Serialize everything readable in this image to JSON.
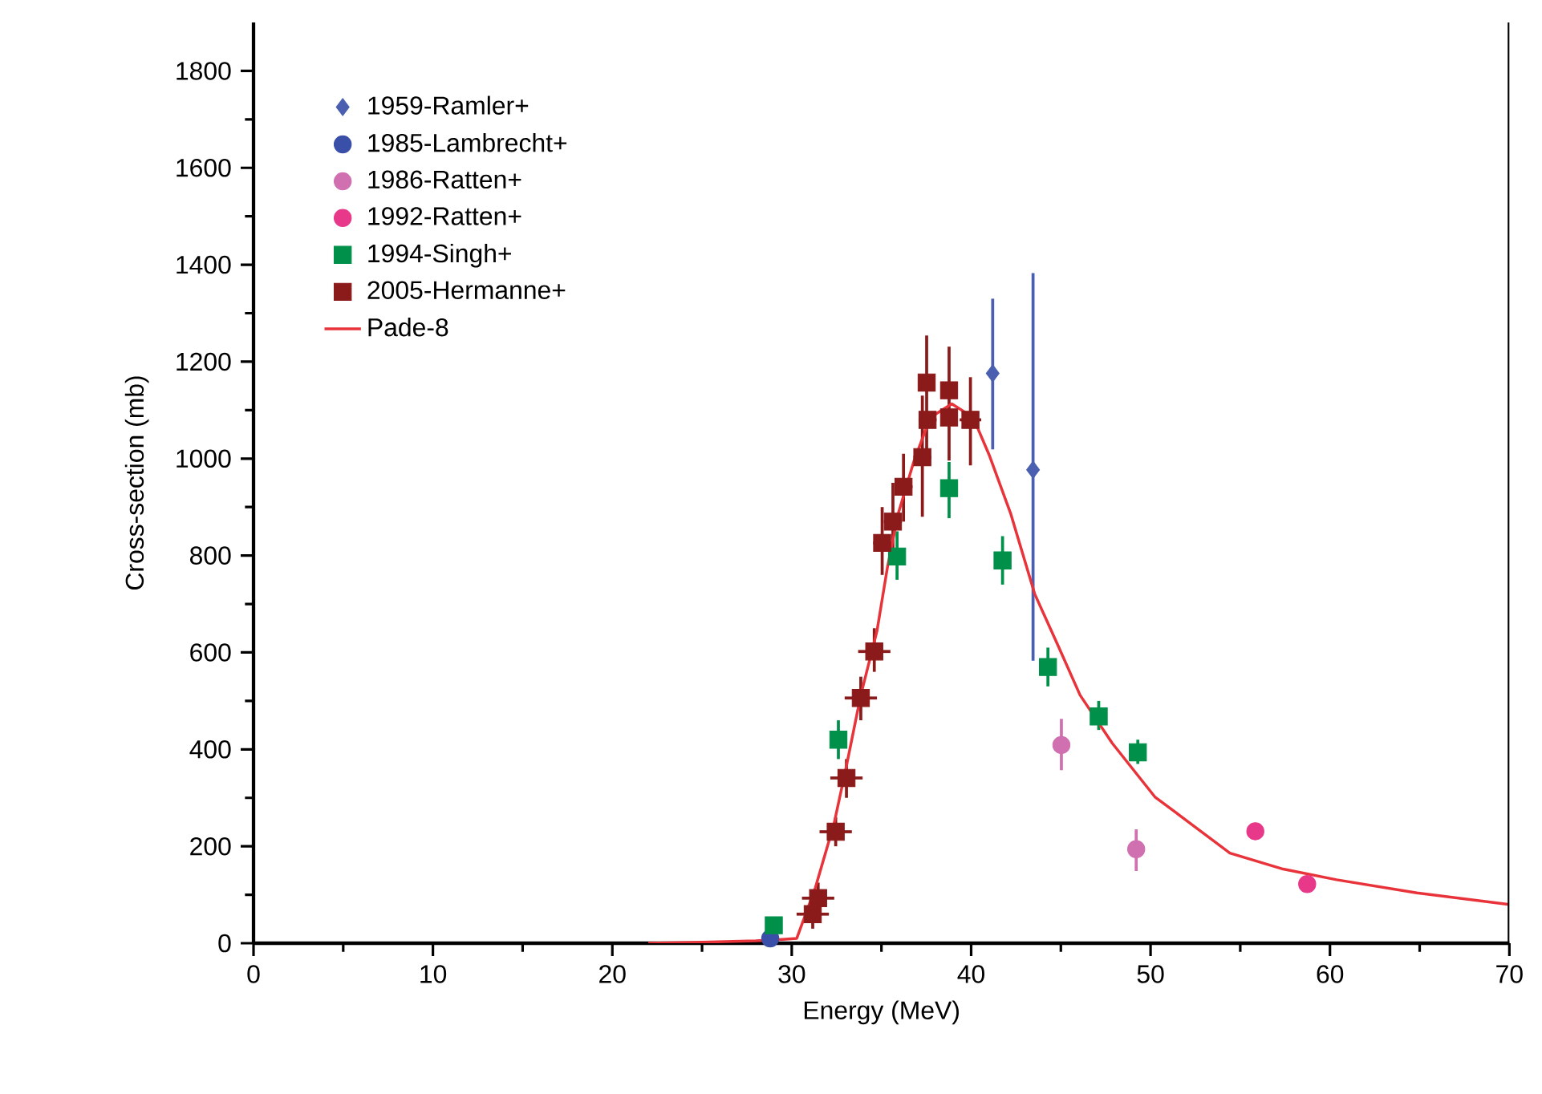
{
  "chart_data": {
    "type": "scatter",
    "xlabel": "Energy (MeV)",
    "ylabel": "Cross-section (mb)",
    "xlim": [
      0,
      70
    ],
    "ylim": [
      0,
      1900
    ],
    "xticks": [
      0,
      10,
      20,
      30,
      40,
      50,
      60,
      70
    ],
    "yticks": [
      0,
      200,
      400,
      600,
      800,
      1000,
      1200,
      1400,
      1600,
      1800
    ],
    "legend": "top left",
    "grid": false,
    "series": [
      {
        "name": "1959-Ramler+",
        "color": "#4a5fb0",
        "marker": "diamond",
        "x": [
          41.2,
          43.45
        ],
        "values": [
          1176,
          977
        ],
        "errors": [
          [
            1019,
            1330
          ],
          [
            583,
            1383
          ]
        ]
      },
      {
        "name": "1985-Lambrecht+",
        "color": "#3a4fa8",
        "marker": "circle",
        "x": [
          28.8
        ],
        "values": [
          10
        ]
      },
      {
        "name": "1986-Ratten+",
        "color": "#d070b0",
        "marker": "circle",
        "x": [
          45.03,
          49.2
        ],
        "values": [
          409,
          194
        ],
        "errors": [
          [
            357,
            463
          ],
          [
            149,
            235
          ]
        ]
      },
      {
        "name": "1992-Ratten+",
        "color": "#e8388a",
        "marker": "circle",
        "x": [
          55.84,
          58.73
        ],
        "values": [
          231,
          122
        ]
      },
      {
        "name": "1994-Singh+",
        "color": "#00904a",
        "marker": "square",
        "x": [
          29.0,
          32.6,
          35.87,
          38.77,
          41.75,
          44.28,
          47.11,
          49.29
        ],
        "values": [
          37,
          420,
          798,
          939,
          790,
          570,
          468,
          394
        ],
        "errors": [
          null,
          [
            380,
            460
          ],
          [
            750,
            850
          ],
          [
            877,
            993
          ],
          [
            740,
            840
          ],
          [
            530,
            610
          ],
          [
            440,
            500
          ],
          [
            370,
            420
          ]
        ]
      },
      {
        "name": "2005-Hermanne+",
        "color": "#8b1a1a",
        "marker": "square",
        "x": [
          31.17,
          31.47,
          32.45,
          33.05,
          33.85,
          34.6,
          35.04,
          35.64,
          36.23,
          37.28,
          37.52,
          37.57,
          38.77,
          38.77,
          39.96
        ],
        "values": [
          60,
          93,
          230,
          341,
          506,
          602,
          826,
          870,
          942,
          1003,
          1157,
          1080,
          1141,
          1085,
          1080
        ],
        "errors": [
          [
            30,
            90
          ],
          [
            60,
            125
          ],
          [
            200,
            260
          ],
          [
            300,
            380
          ],
          [
            460,
            550
          ],
          [
            560,
            650
          ],
          [
            760,
            900
          ],
          [
            800,
            950
          ],
          [
            870,
            1010
          ],
          [
            880,
            1130
          ],
          [
            1012,
            1254
          ],
          null,
          [
            996,
            1231
          ],
          null,
          [
            986,
            1168
          ]
        ],
        "xerrors": [
          0.9,
          0.9,
          0.9,
          0.9,
          0.9,
          0.9,
          0.5,
          0.5,
          0.5,
          0.5,
          null,
          0.5,
          null,
          null,
          0.6
        ]
      },
      {
        "name": "Pade-8",
        "type": "line",
        "color": "#e8333a",
        "line_style": "solid",
        "marker": "none",
        "x": [
          22,
          25,
          28,
          29.5,
          30.28,
          31.32,
          32.36,
          33.0,
          33.85,
          34.75,
          35.34,
          35.94,
          36.83,
          37.73,
          38.92,
          40.11,
          41.0,
          42.2,
          43.54,
          44.88,
          46.07,
          47.86,
          50.24,
          51.43,
          54.42,
          57.39,
          60.37,
          64.84,
          70
        ],
        "values": [
          0,
          2,
          5,
          8,
          10,
          115,
          247,
          357,
          512,
          644,
          777,
          887,
          997,
          1085,
          1113,
          1085,
          1008,
          887,
          721,
          611,
          512,
          413,
          302,
          269,
          186,
          153,
          131,
          104,
          80
        ]
      }
    ]
  }
}
